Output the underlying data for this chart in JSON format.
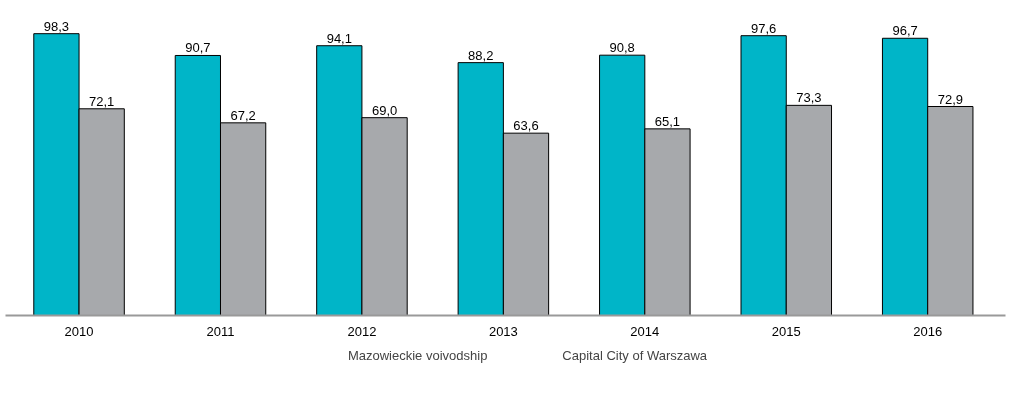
{
  "chart_data": {
    "type": "bar",
    "categories": [
      "2010",
      "2011",
      "2012",
      "2013",
      "2014",
      "2015",
      "2016"
    ],
    "series": [
      {
        "name": "Mazowieckie voivodship",
        "color": "#00b5c8",
        "values": [
          98.3,
          90.7,
          94.1,
          88.2,
          90.8,
          97.6,
          96.7
        ],
        "value_labels": [
          "98,3",
          "90,7",
          "94,1",
          "88,2",
          "90,8",
          "97,6",
          "96,7"
        ]
      },
      {
        "name": "Capital City of Warszawa",
        "color": "#a7a9ac",
        "values": [
          72.1,
          67.2,
          69.0,
          63.6,
          65.1,
          73.3,
          72.9
        ],
        "value_labels": [
          "72,1",
          "67,2",
          "69,0",
          "63,6",
          "65,1",
          "73,3",
          "72,9"
        ]
      }
    ],
    "tick_labels": "x",
    "grid": false,
    "legend": "bottom"
  }
}
